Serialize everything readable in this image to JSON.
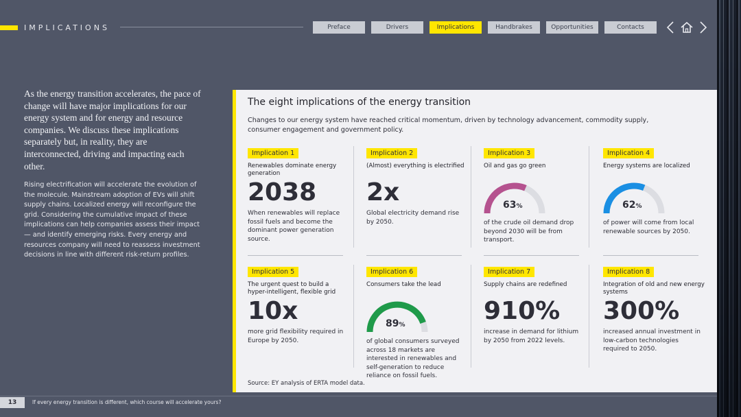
{
  "header": {
    "section": "IMPLICATIONS",
    "nav": [
      {
        "label": "Preface",
        "active": false
      },
      {
        "label": "Drivers",
        "active": false
      },
      {
        "label": "Implications",
        "active": true
      },
      {
        "label": "Handbrakes",
        "active": false
      },
      {
        "label": "Opportunities",
        "active": false
      },
      {
        "label": "Contacts",
        "active": false
      }
    ],
    "prev_icon": "chevron-left-icon",
    "home_icon": "home-icon",
    "next_icon": "chevron-right-icon"
  },
  "intro": "As the energy transition accelerates, the pace of change will have major implications for our energy system and for energy and resource companies. We discuss these implications separately but, in reality, they are interconnected, driving and impacting each other.",
  "body": "Rising electrification will accelerate the evolution of the molecule. Mainstream adoption of EVs will shift supply chains. Localized energy will reconfigure the grid. Considering the cumulative impact of these implications can help companies assess their impact — and identify emerging risks. Every energy and resources company will need to reassess investment decisions in line with different risk-return profiles.",
  "card": {
    "title": "The eight implications of the energy transition",
    "subtitle": "Changes to our energy system have reached critical momentum, driven by technology advancement, commodity supply, consumer engagement and government policy.",
    "source": "Source: EY analysis of ERTA model data.",
    "items": [
      {
        "tag": "Implication  1",
        "head": "Renewables dominate energy generation",
        "big": "2038",
        "desc": "When renewables will replace fossil fuels and become the dominant power generation source."
      },
      {
        "tag": "Implication  2",
        "head": "(Almost) everything is electrified",
        "big": "2x",
        "desc": "Global electricity demand rise by 2050."
      },
      {
        "tag": "Implication  3",
        "head": "Oil and gas go green",
        "gauge": {
          "value": 63,
          "unit": "%",
          "color": "#b5528f"
        },
        "desc": "of the crude oil demand drop beyond 2030 will be from transport."
      },
      {
        "tag": "Implication  4",
        "head": "Energy systems are localized",
        "gauge": {
          "value": 62,
          "unit": "%",
          "color": "#1a8fe3"
        },
        "desc": "of power will come from local renewable sources by 2050."
      },
      {
        "tag": "Implication  5",
        "head": "The urgent quest to build a hyper-intelligent, flexible grid",
        "big": "10x",
        "desc": "more grid flexibility required in Europe by 2050."
      },
      {
        "tag": "Implication  6",
        "head": "Consumers take the lead",
        "gauge": {
          "value": 89,
          "unit": "%",
          "color": "#1f9a4a"
        },
        "desc": "of global consumers surveyed across 18 markets are interested in renewables and self-generation to reduce reliance on fossil fuels."
      },
      {
        "tag": "Implication  7",
        "head": "Supply chains are redefined",
        "big": "910%",
        "desc": "increase in demand for lithium by 2050 from 2022 levels."
      },
      {
        "tag": "Implication  8",
        "head": "Integration of old and new energy systems",
        "big": "300%",
        "desc": "increased annual investment in low-carbon technologies required to 2050."
      }
    ]
  },
  "footer": {
    "page": "13",
    "text": "If every energy transition is different, which course will accelerate yours?"
  }
}
